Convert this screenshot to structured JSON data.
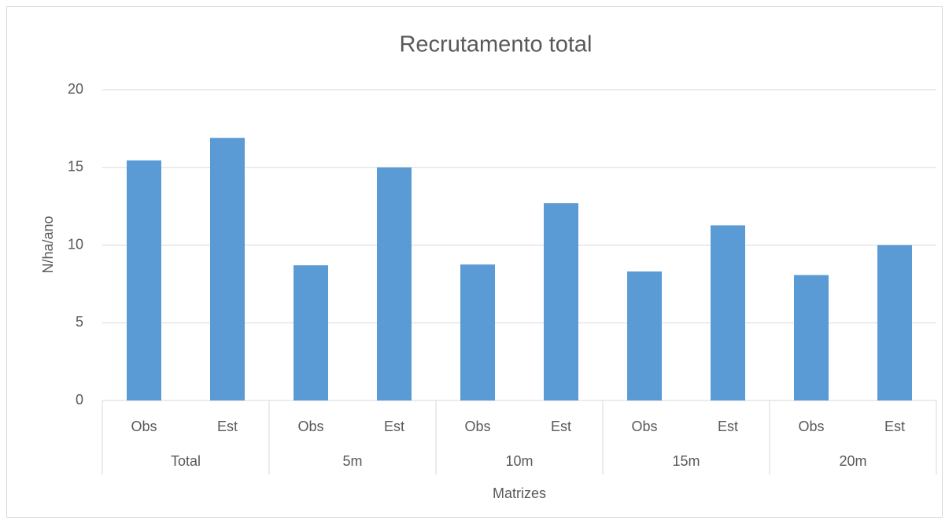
{
  "chart_data": {
    "type": "bar",
    "title": "Recrutamento total",
    "x_label": "Matrizes",
    "y_label": "N/ha/ano",
    "categories": [
      "Obs",
      "Est",
      "Obs",
      "Est",
      "Obs",
      "Est",
      "Obs",
      "Est",
      "Obs",
      "Est"
    ],
    "groups": [
      "Total",
      "5m",
      "10m",
      "15m",
      "20m"
    ],
    "values": [
      15.45,
      16.9,
      8.7,
      15.0,
      8.75,
      12.7,
      8.3,
      11.27,
      8.07,
      10.0
    ],
    "color": "#5b9bd5",
    "ylim": [
      0,
      20
    ],
    "yticks": [
      0,
      5,
      10,
      15,
      20
    ],
    "grid": true
  }
}
